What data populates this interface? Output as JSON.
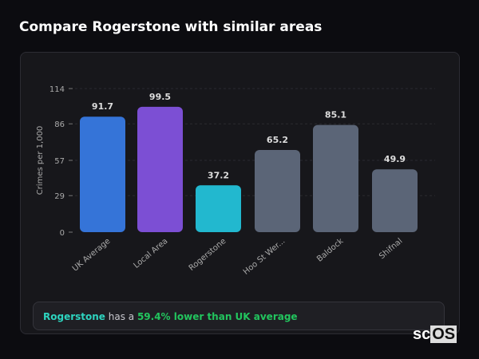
{
  "title": "Compare Rogerstone with similar areas",
  "chart_data": {
    "type": "bar",
    "categories": [
      "UK Average",
      "Local Area",
      "Rogerstone",
      "Hoo St Wer...",
      "Baldock",
      "Shifnal"
    ],
    "values": [
      91.7,
      99.5,
      37.2,
      65.2,
      85.1,
      49.9
    ],
    "colors": [
      "#3574d8",
      "#7c4fd4",
      "#22b8cf",
      "#5b6577",
      "#5b6577",
      "#5b6577"
    ],
    "ylabel": "Crimes per 1,000",
    "yticks": [
      0,
      29,
      57,
      86,
      114
    ],
    "ylim": [
      0,
      114
    ],
    "grid": true
  },
  "summary": {
    "place": "Rogerstone",
    "middle": " has a ",
    "highlight": "59.4% lower than UK average"
  },
  "logo": {
    "text1": "sc",
    "text2": "OS"
  }
}
